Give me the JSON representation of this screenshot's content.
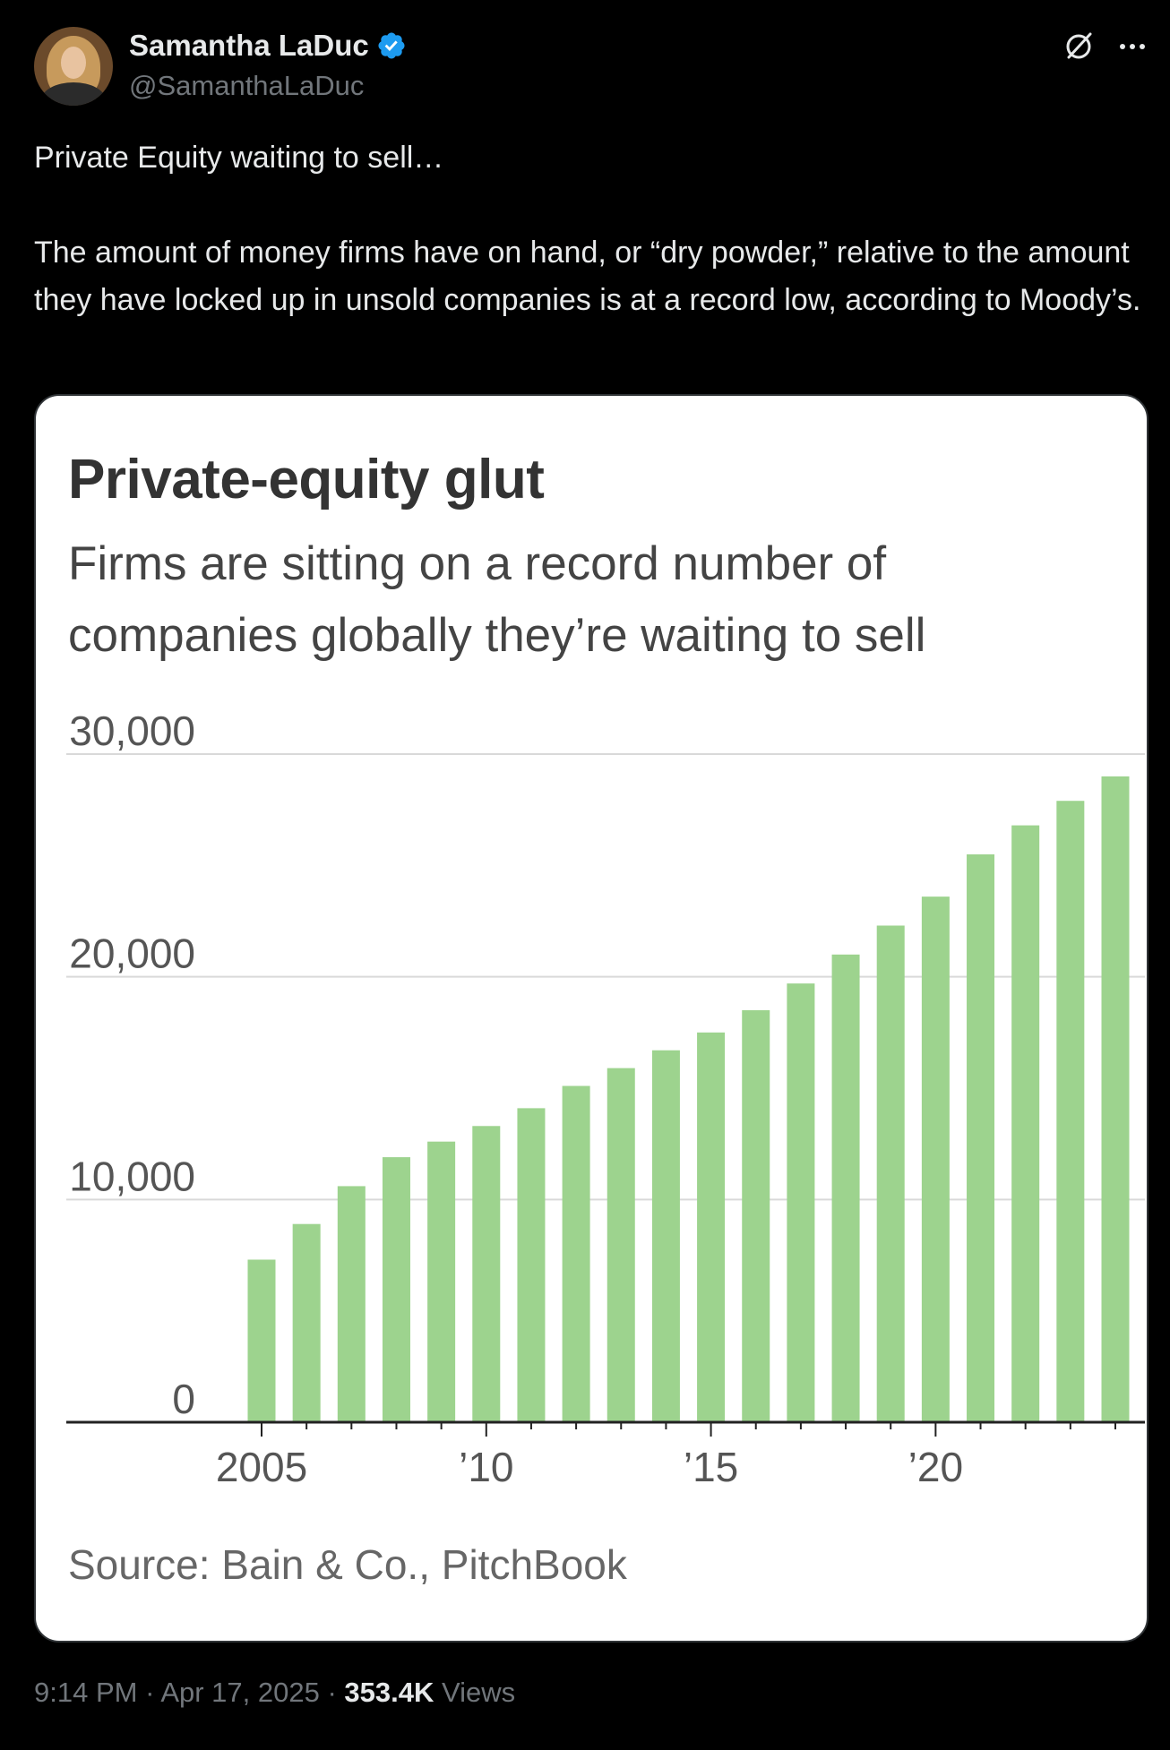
{
  "author": {
    "display_name": "Samantha LaDuc",
    "handle": "@SamanthaLaDuc",
    "verified": true,
    "avatar_icon": "profile-photo"
  },
  "icons": {
    "verified": "verified-badge-icon",
    "grok": "grok-icon",
    "more": "more-options-icon"
  },
  "tweet": {
    "line1": "Private Equity waiting to sell…",
    "line2": "The amount of money firms have on hand, or “dry powder,” relative to the amount they have locked up in unsold companies is at a record low, according to Moody’s."
  },
  "chart_data": {
    "type": "bar",
    "title": "Private-equity glut",
    "subtitle": "Firms are sitting on a record number of companies globally they’re waiting to sell",
    "source": "Source: Bain & Co., PitchBook",
    "categories": [
      "2005",
      "2006",
      "2007",
      "2008",
      "2009",
      "2010",
      "2011",
      "2012",
      "2013",
      "2014",
      "2015",
      "2016",
      "2017",
      "2018",
      "2019",
      "2020",
      "2021",
      "2022",
      "2023",
      "2024"
    ],
    "values": [
      7300,
      8900,
      10600,
      11900,
      12600,
      13300,
      14100,
      15100,
      15900,
      16700,
      17500,
      18500,
      19700,
      21000,
      22300,
      23600,
      25500,
      26800,
      27900,
      29000
    ],
    "x_tick_labels": [
      "2005",
      "’10",
      "’15",
      "’20"
    ],
    "y_ticks": [
      "0",
      "10,000",
      "20,000",
      "30,000"
    ],
    "ylim": [
      0,
      30000
    ],
    "grid": true,
    "bar_color": "#9dd38e"
  },
  "meta": {
    "time": "9:14 PM",
    "separator": "·",
    "date": "Apr 17, 2025",
    "views_count": "353.4K",
    "views_label": "Views"
  }
}
